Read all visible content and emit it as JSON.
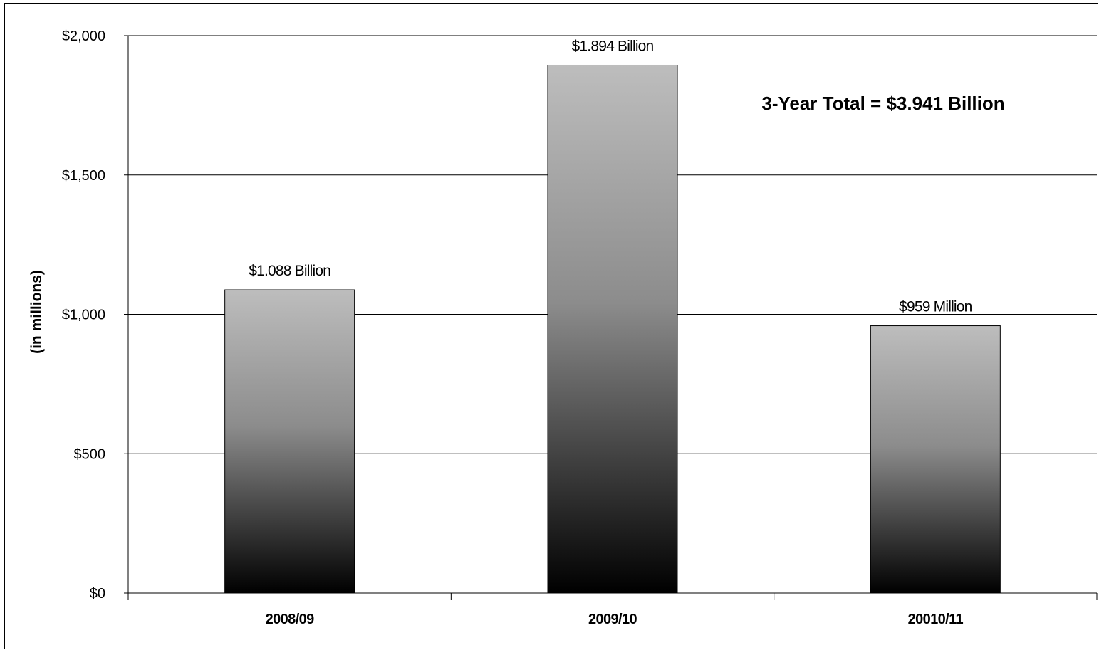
{
  "chart_data": {
    "type": "bar",
    "title": "",
    "xlabel": "",
    "ylabel": "(in millions)",
    "categories": [
      "2008/09",
      "2009/10",
      "20010/11"
    ],
    "values": [
      1088,
      1894,
      959
    ],
    "data_labels": [
      "$1.088 Billion",
      "$1.894 Billion",
      "$959 Million"
    ],
    "ylim": [
      0,
      2000
    ],
    "yticks": [
      0,
      500,
      1000,
      1500,
      2000
    ],
    "ytick_labels": [
      "$0",
      "$500",
      "$1,000",
      "$1,500",
      "$2,000"
    ],
    "annotation": "3-Year Total = $3.941 Billion",
    "grid": true,
    "legend": "none",
    "bar_gradient": {
      "top": "#bdbdbd",
      "mid": "#8c8c8c",
      "bottom": "#000000"
    }
  }
}
